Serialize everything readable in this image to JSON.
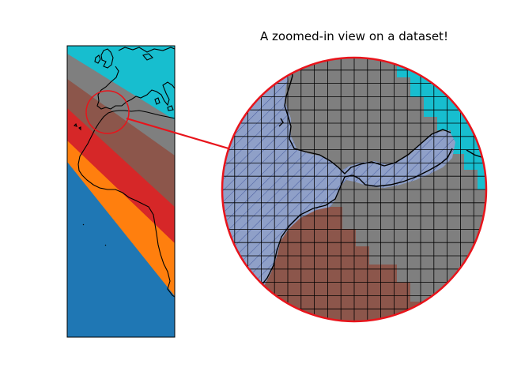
{
  "figure": {
    "title": "A zoomed-in view on a dataset!"
  },
  "map_panel": {
    "bands": [
      {
        "name": "band-cyan",
        "color": "#17becf"
      },
      {
        "name": "band-gray",
        "color": "#7f7f7f"
      },
      {
        "name": "band-brown",
        "color": "#8c564b"
      },
      {
        "name": "band-red",
        "color": "#d62728"
      },
      {
        "name": "band-orange",
        "color": "#ff7f0e"
      },
      {
        "name": "band-blue",
        "color": "#1f77b4"
      }
    ],
    "highlight_color": "#ff0000"
  },
  "zoom_panel": {
    "border_color": "#ff0000",
    "hatch_fill": "#8fa0c8",
    "grid_color": "#000000"
  }
}
